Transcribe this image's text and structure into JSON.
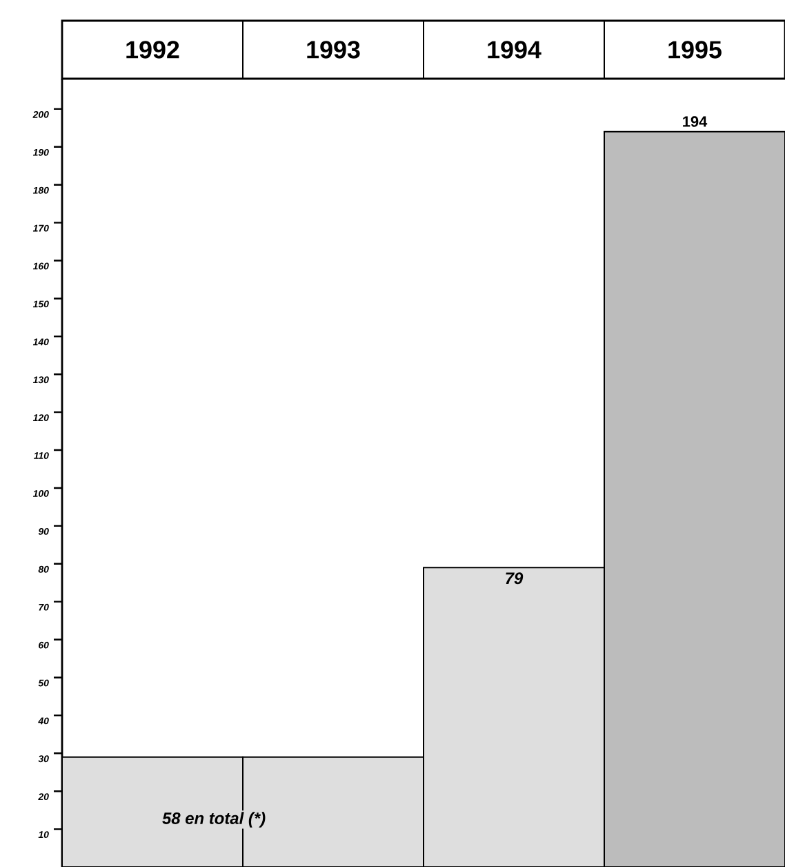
{
  "chart_data": {
    "type": "bar",
    "categories": [
      "1992",
      "1993",
      "1994",
      "1995"
    ],
    "values": [
      29,
      29,
      79,
      194
    ],
    "colors": [
      "#dedede",
      "#dedede",
      "#dedede",
      "#bcbcbc"
    ],
    "value_labels": [
      null,
      null,
      "79",
      "194"
    ],
    "annotations": [
      "58 en total (*)"
    ],
    "ylim": [
      0,
      208
    ],
    "yticks": [
      10,
      20,
      30,
      40,
      50,
      60,
      70,
      80,
      90,
      100,
      110,
      120,
      130,
      140,
      150,
      160,
      170,
      180,
      190,
      200
    ],
    "grid": false
  }
}
